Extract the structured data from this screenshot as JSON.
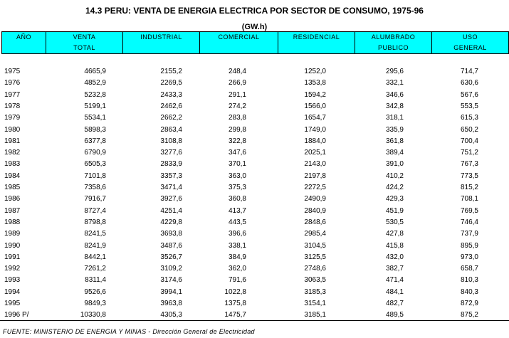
{
  "title": "14.3 PERU:  VENTA DE ENERGIA ELECTRICA POR SECTOR DE CONSUMO, 1975-96",
  "subtitle": "(GW.h)",
  "columns": [
    {
      "line1": "AÑO",
      "line2": ""
    },
    {
      "line1": "VENTA",
      "line2": "TOTAL"
    },
    {
      "line1": "INDUSTRIAL",
      "line2": ""
    },
    {
      "line1": "COMERCIAL",
      "line2": ""
    },
    {
      "line1": "RESIDENCIAL",
      "line2": ""
    },
    {
      "line1": "ALUMBRADO",
      "line2": "PUBLICO"
    },
    {
      "line1": "USO",
      "line2": "GENERAL"
    }
  ],
  "rows": [
    [
      "1975",
      "4665,9",
      "2155,2",
      "248,4",
      "1252,0",
      "295,6",
      "714,7"
    ],
    [
      "1976",
      "4852,9",
      "2269,5",
      "266,9",
      "1353,8",
      "332,1",
      "630,6"
    ],
    [
      "1977",
      "5232,8",
      "2433,3",
      "291,1",
      "1594,2",
      "346,6",
      "567,6"
    ],
    [
      "1978",
      "5199,1",
      "2462,6",
      "274,2",
      "1566,0",
      "342,8",
      "553,5"
    ],
    [
      "1979",
      "5534,1",
      "2662,2",
      "283,8",
      "1654,7",
      "318,1",
      "615,3"
    ],
    [
      "1980",
      "5898,3",
      "2863,4",
      "299,8",
      "1749,0",
      "335,9",
      "650,2"
    ],
    [
      "1981",
      "6377,8",
      "3108,8",
      "322,8",
      "1884,0",
      "361,8",
      "700,4"
    ],
    [
      "1982",
      "6790,9",
      "3277,6",
      "347,6",
      "2025,1",
      "389,4",
      "751,2"
    ],
    [
      "1983",
      "6505,3",
      "2833,9",
      "370,1",
      "2143,0",
      "391,0",
      "767,3"
    ],
    [
      "1984",
      "7101,8",
      "3357,3",
      "363,0",
      "2197,8",
      "410,2",
      "773,5"
    ],
    [
      "1985",
      "7358,6",
      "3471,4",
      "375,3",
      "2272,5",
      "424,2",
      "815,2"
    ],
    [
      "1986",
      "7916,7",
      "3927,6",
      "360,8",
      "2490,9",
      "429,3",
      "708,1"
    ],
    [
      "1987",
      "8727,4",
      "4251,4",
      "413,7",
      "2840,9",
      "451,9",
      "769,5"
    ],
    [
      "1988",
      "8798,8",
      "4229,8",
      "443,5",
      "2848,6",
      "530,5",
      "746,4"
    ],
    [
      "1989",
      "8241,5",
      "3693,8",
      "396,6",
      "2985,4",
      "427,8",
      "737,9"
    ],
    [
      "1990",
      "8241,9",
      "3487,6",
      "338,1",
      "3104,5",
      "415,8",
      "895,9"
    ],
    [
      "1991",
      "8442,1",
      "3526,7",
      "384,9",
      "3125,5",
      "432,0",
      "973,0"
    ],
    [
      "1992",
      "7261,2",
      "3109,2",
      "362,0",
      "2748,6",
      "382,7",
      "658,7"
    ],
    [
      "1993",
      "8311,4",
      "3174,6",
      "791,6",
      "3063,5",
      "471,4",
      "810,3"
    ],
    [
      "1994",
      "9526,6",
      "3994,1",
      "1022,8",
      "3185,3",
      "484,1",
      "840,3"
    ],
    [
      "1995",
      "9849,3",
      "3963,8",
      "1375,8",
      "3154,1",
      "482,7",
      "872,9"
    ],
    [
      "1996 P/",
      "10330,8",
      "4305,3",
      "1475,7",
      "3185,1",
      "489,5",
      "875,2"
    ]
  ],
  "source": "FUENTE: MINISTERIO DE ENERGIA Y MINAS - Dirección General de Electricidad"
}
